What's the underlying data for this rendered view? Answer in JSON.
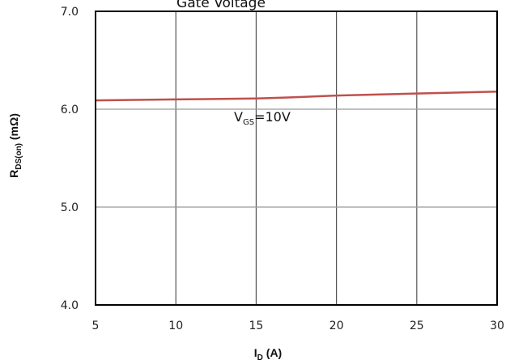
{
  "chart_data": {
    "type": "line",
    "title": "Gate Voltage",
    "xlabel": {
      "main": "I",
      "sub": "D",
      "unit": " (A)"
    },
    "ylabel": {
      "main": "R",
      "sub": "DS(on)",
      "unit": " (mΩ)"
    },
    "xlim": [
      5,
      30
    ],
    "ylim": [
      4.0,
      7.0
    ],
    "xticks": [
      "5",
      "10",
      "15",
      "20",
      "25",
      "30"
    ],
    "yticks": [
      "4.0",
      "5.0",
      "6.0",
      "7.0"
    ],
    "grid": true,
    "series": [
      {
        "color": "#c0504d",
        "x": [
          5,
          10,
          15,
          17,
          20,
          25,
          30
        ],
        "y": [
          6.09,
          6.1,
          6.11,
          6.12,
          6.14,
          6.16,
          6.18
        ]
      }
    ],
    "annotation": {
      "main": "V",
      "sub": "GS",
      "rest": "=10V"
    }
  }
}
